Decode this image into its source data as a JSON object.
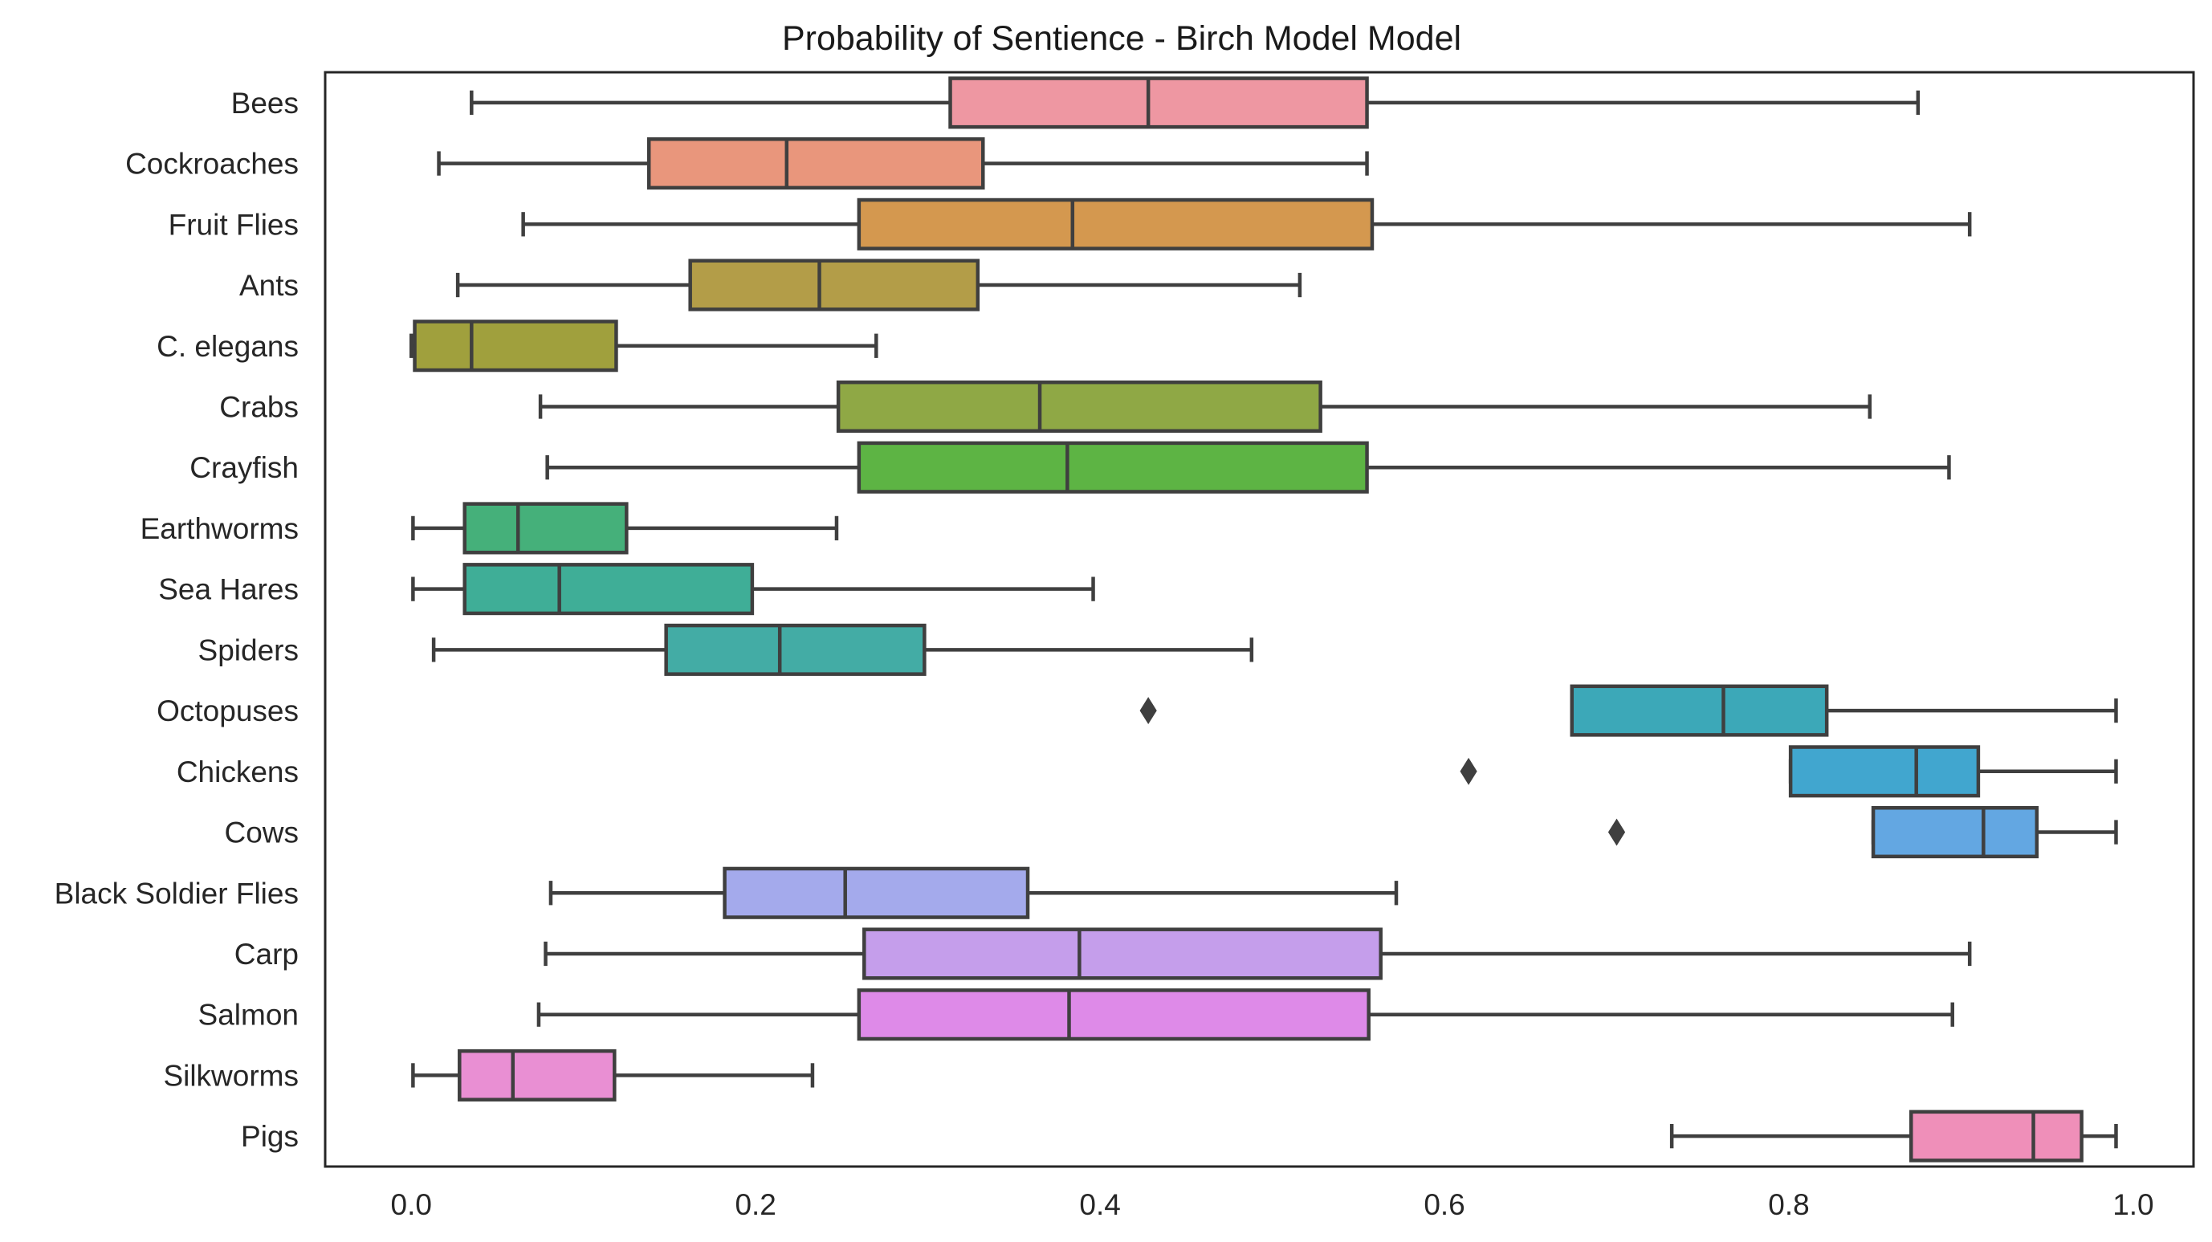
{
  "chart_data": {
    "type": "boxplot",
    "orientation": "horizontal",
    "title": "Probability of Sentience - Birch Model Model",
    "xlabel": "",
    "ylabel": "",
    "xlim": [
      -0.05,
      1.035
    ],
    "xticks": [
      0.0,
      0.2,
      0.4,
      0.6,
      0.8,
      1.0
    ],
    "xtick_labels": [
      "0.0",
      "0.2",
      "0.4",
      "0.6",
      "0.8",
      "1.0"
    ],
    "grid": false,
    "legend": "none",
    "categories": [
      "Bees",
      "Cockroaches",
      "Fruit Flies",
      "Ants",
      "C. elegans",
      "Crabs",
      "Crayfish",
      "Earthworms",
      "Sea Hares",
      "Spiders",
      "Octopuses",
      "Chickens",
      "Cows",
      "Black Soldier Flies",
      "Carp",
      "Salmon",
      "Silkworms",
      "Pigs"
    ],
    "boxes": [
      {
        "category": "Bees",
        "whisker_low": 0.035,
        "q1": 0.313,
        "median": 0.428,
        "q3": 0.555,
        "whisker_high": 0.875,
        "outliers": [],
        "color": "#ee97a2"
      },
      {
        "category": "Cockroaches",
        "whisker_low": 0.016,
        "q1": 0.138,
        "median": 0.218,
        "q3": 0.332,
        "whisker_high": 0.555,
        "outliers": [],
        "color": "#e9967c"
      },
      {
        "category": "Fruit Flies",
        "whisker_low": 0.065,
        "q1": 0.26,
        "median": 0.384,
        "q3": 0.558,
        "whisker_high": 0.905,
        "outliers": [],
        "color": "#d4984f"
      },
      {
        "category": "Ants",
        "whisker_low": 0.027,
        "q1": 0.162,
        "median": 0.237,
        "q3": 0.329,
        "whisker_high": 0.516,
        "outliers": [],
        "color": "#b39d48"
      },
      {
        "category": "C. elegans",
        "whisker_low": 0.0,
        "q1": 0.002,
        "median": 0.035,
        "q3": 0.119,
        "whisker_high": 0.27,
        "outliers": [],
        "color": "#a0a03d"
      },
      {
        "category": "Crabs",
        "whisker_low": 0.075,
        "q1": 0.248,
        "median": 0.365,
        "q3": 0.528,
        "whisker_high": 0.847,
        "outliers": [],
        "color": "#8fa845"
      },
      {
        "category": "Crayfish",
        "whisker_low": 0.079,
        "q1": 0.26,
        "median": 0.381,
        "q3": 0.555,
        "whisker_high": 0.893,
        "outliers": [],
        "color": "#5db444"
      },
      {
        "category": "Earthworms",
        "whisker_low": 0.001,
        "q1": 0.031,
        "median": 0.062,
        "q3": 0.125,
        "whisker_high": 0.247,
        "outliers": [],
        "color": "#45b07a"
      },
      {
        "category": "Sea Hares",
        "whisker_low": 0.001,
        "q1": 0.031,
        "median": 0.086,
        "q3": 0.198,
        "whisker_high": 0.396,
        "outliers": [],
        "color": "#3fae97"
      },
      {
        "category": "Spiders",
        "whisker_low": 0.013,
        "q1": 0.148,
        "median": 0.214,
        "q3": 0.298,
        "whisker_high": 0.488,
        "outliers": [],
        "color": "#43aca5"
      },
      {
        "category": "Octopuses",
        "whisker_low": 0.674,
        "q1": 0.674,
        "median": 0.762,
        "q3": 0.822,
        "whisker_high": 0.99,
        "outliers": [
          0.428
        ],
        "color": "#3ca8b8"
      },
      {
        "category": "Chickens",
        "whisker_low": 0.801,
        "q1": 0.801,
        "median": 0.874,
        "q3": 0.91,
        "whisker_high": 0.99,
        "outliers": [
          0.614
        ],
        "color": "#41a6cf"
      },
      {
        "category": "Cows",
        "whisker_low": 0.849,
        "q1": 0.849,
        "median": 0.913,
        "q3": 0.944,
        "whisker_high": 0.99,
        "outliers": [
          0.7
        ],
        "color": "#63a7e2"
      },
      {
        "category": "Black Soldier Flies",
        "whisker_low": 0.081,
        "q1": 0.182,
        "median": 0.252,
        "q3": 0.358,
        "whisker_high": 0.572,
        "outliers": [],
        "color": "#a4aaec"
      },
      {
        "category": "Carp",
        "whisker_low": 0.078,
        "q1": 0.263,
        "median": 0.388,
        "q3": 0.563,
        "whisker_high": 0.905,
        "outliers": [],
        "color": "#c59eeb"
      },
      {
        "category": "Salmon",
        "whisker_low": 0.074,
        "q1": 0.26,
        "median": 0.382,
        "q3": 0.556,
        "whisker_high": 0.895,
        "outliers": [],
        "color": "#de8ae8"
      },
      {
        "category": "Silkworms",
        "whisker_low": 0.001,
        "q1": 0.028,
        "median": 0.059,
        "q3": 0.118,
        "whisker_high": 0.233,
        "outliers": [],
        "color": "#e98fd3"
      },
      {
        "category": "Pigs",
        "whisker_low": 0.732,
        "q1": 0.871,
        "median": 0.942,
        "q3": 0.97,
        "whisker_high": 0.99,
        "outliers": [],
        "color": "#ef8fb9"
      }
    ]
  }
}
